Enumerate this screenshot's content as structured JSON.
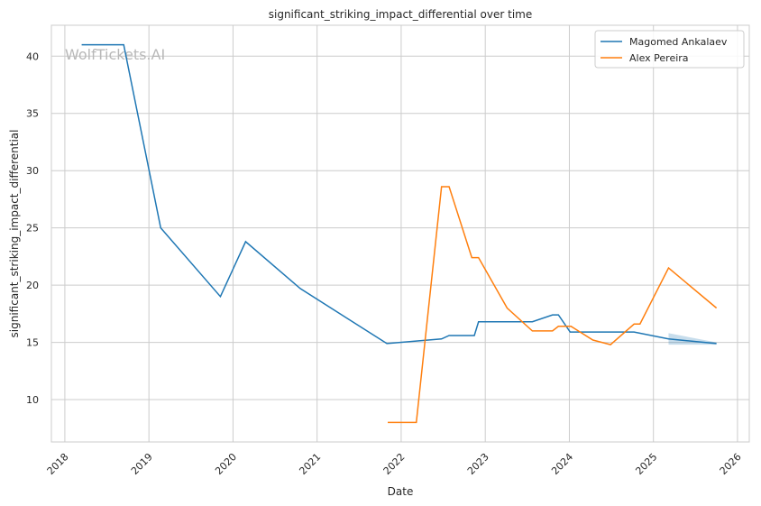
{
  "chart_data": {
    "type": "line",
    "title": "significant_striking_impact_differential over time",
    "xlabel": "Date",
    "ylabel": "significant_striking_impact_differential",
    "xlim": [
      2017.84,
      2026.14
    ],
    "ylim": [
      6.3,
      42.7
    ],
    "xticks": [
      2018,
      2019,
      2020,
      2021,
      2022,
      2023,
      2024,
      2025,
      2026
    ],
    "yticks": [
      10,
      15,
      20,
      25,
      30,
      35,
      40
    ],
    "grid": true,
    "legend_position": "top-right",
    "watermark": "WolfTickets.AI",
    "series": [
      {
        "name": "Magomed Ankalaev",
        "color": "#1f77b4",
        "x": [
          2018.2,
          2018.7,
          2019.14,
          2019.85,
          2020.15,
          2020.8,
          2021.83,
          2022.48,
          2022.57,
          2022.87,
          2022.92,
          2023.56,
          2023.8,
          2023.87,
          2024.01,
          2024.77,
          2025.18,
          2025.75
        ],
        "y": [
          41.0,
          41.0,
          25.0,
          19.0,
          23.8,
          19.7,
          14.9,
          15.3,
          15.6,
          15.6,
          16.8,
          16.8,
          17.4,
          17.4,
          15.9,
          15.9,
          15.3,
          14.9
        ],
        "ci": {
          "x": [
            2025.18,
            2025.75
          ],
          "lower": [
            14.8,
            14.8
          ],
          "upper": [
            15.8,
            15.0
          ]
        }
      },
      {
        "name": "Alex Pereira",
        "color": "#ff7f0e",
        "x": [
          2021.84,
          2022.18,
          2022.48,
          2022.57,
          2022.84,
          2022.92,
          2023.26,
          2023.56,
          2023.8,
          2023.87,
          2024.02,
          2024.28,
          2024.49,
          2024.77,
          2024.84,
          2025.18,
          2025.75
        ],
        "y": [
          8.0,
          8.0,
          28.6,
          28.6,
          22.4,
          22.4,
          18.0,
          16.0,
          16.0,
          16.4,
          16.4,
          15.2,
          14.8,
          16.6,
          16.6,
          21.5,
          18.0
        ]
      }
    ]
  }
}
